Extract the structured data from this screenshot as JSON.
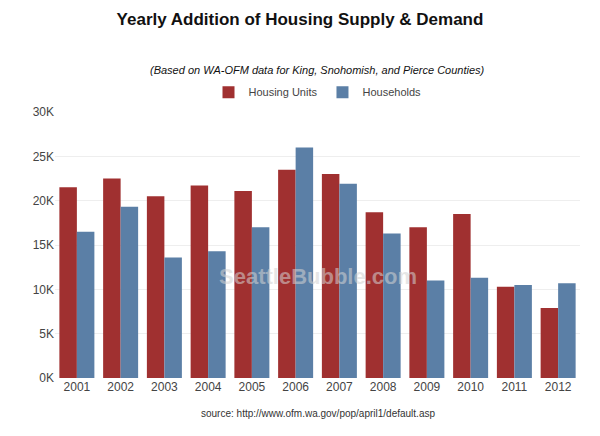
{
  "chart_data": {
    "type": "bar",
    "title": "Yearly Addition of Housing Supply & Demand",
    "subtitle": "(Based on WA-OFM data for King, Snohomish, and Pierce Counties)",
    "annotations": [
      "SeattleBubble.com",
      "source: http://www.ofm.wa.gov/pop/april1/default.asp"
    ],
    "categories": [
      "2001",
      "2002",
      "2003",
      "2004",
      "2005",
      "2006",
      "2007",
      "2008",
      "2009",
      "2010",
      "2011",
      "2012"
    ],
    "series": [
      {
        "name": "Housing Units",
        "color": "#a03030",
        "values": [
          21500,
          22500,
          20500,
          21700,
          21100,
          23500,
          23000,
          18700,
          17000,
          18500,
          10300,
          7900
        ]
      },
      {
        "name": "Households",
        "color": "#5b7fa6",
        "values": [
          16500,
          19300,
          13600,
          14300,
          17000,
          26000,
          21900,
          16300,
          11000,
          11300,
          10500,
          10700
        ]
      }
    ],
    "ylim": [
      0,
      30000
    ],
    "yticks": [
      {
        "value": 0,
        "label": "0K"
      },
      {
        "value": 5000,
        "label": "5K"
      },
      {
        "value": 10000,
        "label": "10K"
      },
      {
        "value": 15000,
        "label": "15K"
      },
      {
        "value": 20000,
        "label": "20K"
      },
      {
        "value": 25000,
        "label": "25K"
      },
      {
        "value": 30000,
        "label": "30K"
      }
    ],
    "grid": true,
    "legend": "top"
  }
}
